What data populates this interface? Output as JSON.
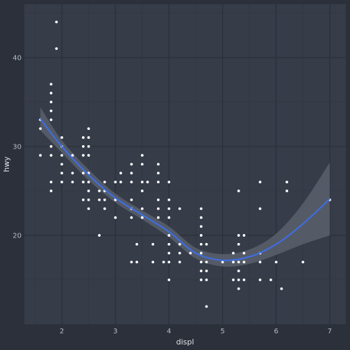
{
  "chart_data": {
    "type": "scatter",
    "xlabel": "displ",
    "ylabel": "hwy",
    "xlim": [
      1.3,
      7.3
    ],
    "ylim": [
      10,
      46
    ],
    "x_ticks": [
      2,
      3,
      4,
      5,
      6,
      7
    ],
    "y_ticks": [
      20,
      30,
      40
    ],
    "grid": true,
    "colors": {
      "background": "#2b303a",
      "panel": "#363c48",
      "grid_major": "#2a2f39",
      "grid_minor": "#313642",
      "point": "#ffffff",
      "smooth": "#3f6de0",
      "ribbon": "#59606d"
    },
    "points": [
      [
        1.6,
        29
      ],
      [
        1.6,
        32
      ],
      [
        1.6,
        33
      ],
      [
        1.8,
        25
      ],
      [
        1.8,
        26
      ],
      [
        1.8,
        29
      ],
      [
        1.8,
        30
      ],
      [
        1.8,
        33
      ],
      [
        1.8,
        34
      ],
      [
        1.8,
        35
      ],
      [
        1.8,
        36
      ],
      [
        1.8,
        37
      ],
      [
        1.9,
        41
      ],
      [
        1.9,
        44
      ],
      [
        2.0,
        26
      ],
      [
        2.0,
        27
      ],
      [
        2.0,
        28
      ],
      [
        2.0,
        29
      ],
      [
        2.0,
        30
      ],
      [
        2.0,
        31
      ],
      [
        2.2,
        26
      ],
      [
        2.2,
        27
      ],
      [
        2.2,
        29
      ],
      [
        2.4,
        24
      ],
      [
        2.4,
        26
      ],
      [
        2.4,
        27
      ],
      [
        2.4,
        29
      ],
      [
        2.4,
        30
      ],
      [
        2.4,
        31
      ],
      [
        2.5,
        23
      ],
      [
        2.5,
        24
      ],
      [
        2.5,
        25
      ],
      [
        2.5,
        26
      ],
      [
        2.5,
        27
      ],
      [
        2.5,
        29
      ],
      [
        2.5,
        30
      ],
      [
        2.5,
        31
      ],
      [
        2.5,
        32
      ],
      [
        2.7,
        20
      ],
      [
        2.7,
        24
      ],
      [
        2.7,
        25
      ],
      [
        2.8,
        23
      ],
      [
        2.8,
        24
      ],
      [
        2.8,
        25
      ],
      [
        2.8,
        26
      ],
      [
        3.0,
        22
      ],
      [
        3.0,
        24
      ],
      [
        3.0,
        26
      ],
      [
        3.1,
        26
      ],
      [
        3.1,
        27
      ],
      [
        3.3,
        17
      ],
      [
        3.3,
        22
      ],
      [
        3.3,
        23
      ],
      [
        3.3,
        24
      ],
      [
        3.3,
        26
      ],
      [
        3.3,
        27
      ],
      [
        3.3,
        28
      ],
      [
        3.4,
        17
      ],
      [
        3.4,
        19
      ],
      [
        3.5,
        22
      ],
      [
        3.5,
        23
      ],
      [
        3.5,
        25
      ],
      [
        3.5,
        26
      ],
      [
        3.5,
        28
      ],
      [
        3.5,
        29
      ],
      [
        3.6,
        26
      ],
      [
        3.7,
        17
      ],
      [
        3.7,
        19
      ],
      [
        3.8,
        22
      ],
      [
        3.8,
        23
      ],
      [
        3.8,
        24
      ],
      [
        3.8,
        26
      ],
      [
        3.8,
        27
      ],
      [
        3.8,
        28
      ],
      [
        3.9,
        17
      ],
      [
        4.0,
        15
      ],
      [
        4.0,
        17
      ],
      [
        4.0,
        18
      ],
      [
        4.0,
        19
      ],
      [
        4.0,
        20
      ],
      [
        4.0,
        22
      ],
      [
        4.0,
        23
      ],
      [
        4.0,
        24
      ],
      [
        4.0,
        26
      ],
      [
        4.2,
        17
      ],
      [
        4.2,
        18
      ],
      [
        4.2,
        19
      ],
      [
        4.2,
        23
      ],
      [
        4.4,
        18
      ],
      [
        4.6,
        15
      ],
      [
        4.6,
        16
      ],
      [
        4.6,
        17
      ],
      [
        4.6,
        18
      ],
      [
        4.6,
        19
      ],
      [
        4.6,
        20
      ],
      [
        4.6,
        21
      ],
      [
        4.6,
        22
      ],
      [
        4.6,
        23
      ],
      [
        4.7,
        12
      ],
      [
        4.7,
        15
      ],
      [
        4.7,
        16
      ],
      [
        4.7,
        17
      ],
      [
        4.7,
        19
      ],
      [
        5.0,
        17
      ],
      [
        5.2,
        15
      ],
      [
        5.2,
        17
      ],
      [
        5.2,
        18
      ],
      [
        5.3,
        14
      ],
      [
        5.3,
        15
      ],
      [
        5.3,
        16
      ],
      [
        5.3,
        17
      ],
      [
        5.3,
        19
      ],
      [
        5.3,
        20
      ],
      [
        5.3,
        25
      ],
      [
        5.4,
        15
      ],
      [
        5.4,
        17
      ],
      [
        5.4,
        18
      ],
      [
        5.4,
        20
      ],
      [
        5.7,
        15
      ],
      [
        5.7,
        17
      ],
      [
        5.7,
        18
      ],
      [
        5.7,
        23
      ],
      [
        5.7,
        26
      ],
      [
        5.9,
        15
      ],
      [
        6.0,
        17
      ],
      [
        6.1,
        14
      ],
      [
        6.2,
        25
      ],
      [
        6.2,
        26
      ],
      [
        6.5,
        17
      ],
      [
        7.0,
        24
      ]
    ],
    "smooth": {
      "x": [
        1.6,
        2.0,
        2.5,
        3.0,
        3.5,
        4.0,
        4.5,
        5.0,
        5.5,
        6.0,
        6.5,
        7.0
      ],
      "y": [
        33.1,
        30.0,
        26.8,
        24.2,
        22.3,
        20.4,
        18.0,
        17.2,
        17.6,
        19.0,
        21.3,
        24.1
      ],
      "lower": [
        31.8,
        29.3,
        26.2,
        23.7,
        21.8,
        19.8,
        17.4,
        16.5,
        16.8,
        17.8,
        19.0,
        20.0
      ],
      "upper": [
        34.4,
        30.7,
        27.4,
        24.7,
        22.8,
        21.0,
        18.6,
        17.9,
        18.4,
        20.2,
        23.6,
        28.2
      ]
    }
  }
}
